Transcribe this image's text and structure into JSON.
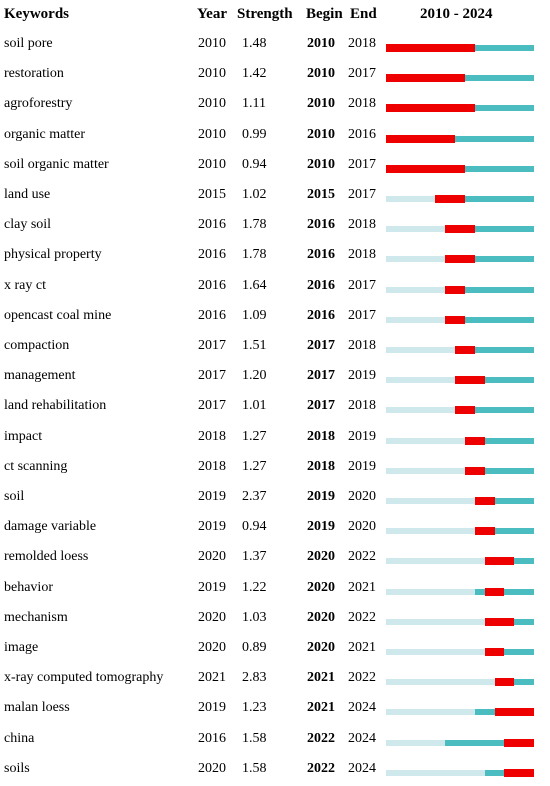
{
  "headers": {
    "keywords": "Keywords",
    "year": "Year",
    "strength": "Strength",
    "begin": "Begin",
    "end": "End",
    "range": "2010 - 2024"
  },
  "colors": {
    "burst": "#ee0000",
    "active": "#4bbcc0",
    "inactive": "#cfe8ec"
  },
  "chart_data": {
    "type": "table",
    "range_start": 2010,
    "range_end": 2024,
    "columns": [
      "Keywords",
      "Year",
      "Strength",
      "Begin",
      "End",
      "2010 - 2024"
    ],
    "rows": [
      {
        "keyword": "soil pore",
        "year": "2010",
        "strength": "1.48",
        "begin": "2010",
        "end": "2018"
      },
      {
        "keyword": "restoration",
        "year": "2010",
        "strength": "1.42",
        "begin": "2010",
        "end": "2017"
      },
      {
        "keyword": "agroforestry",
        "year": "2010",
        "strength": "1.11",
        "begin": "2010",
        "end": "2018"
      },
      {
        "keyword": "organic matter",
        "year": "2010",
        "strength": "0.99",
        "begin": "2010",
        "end": "2016"
      },
      {
        "keyword": "soil organic matter",
        "year": "2010",
        "strength": "0.94",
        "begin": "2010",
        "end": "2017"
      },
      {
        "keyword": "land use",
        "year": "2015",
        "strength": "1.02",
        "begin": "2015",
        "end": "2017"
      },
      {
        "keyword": "clay soil",
        "year": "2016",
        "strength": "1.78",
        "begin": "2016",
        "end": "2018"
      },
      {
        "keyword": "physical property",
        "year": "2016",
        "strength": "1.78",
        "begin": "2016",
        "end": "2018"
      },
      {
        "keyword": "x ray ct",
        "year": "2016",
        "strength": "1.64",
        "begin": "2016",
        "end": "2017"
      },
      {
        "keyword": "opencast coal mine",
        "year": "2016",
        "strength": "1.09",
        "begin": "2016",
        "end": "2017"
      },
      {
        "keyword": "compaction",
        "year": "2017",
        "strength": "1.51",
        "begin": "2017",
        "end": "2018"
      },
      {
        "keyword": "management",
        "year": "2017",
        "strength": "1.20",
        "begin": "2017",
        "end": "2019"
      },
      {
        "keyword": "land rehabilitation",
        "year": "2017",
        "strength": "1.01",
        "begin": "2017",
        "end": "2018"
      },
      {
        "keyword": "impact",
        "year": "2018",
        "strength": "1.27",
        "begin": "2018",
        "end": "2019"
      },
      {
        "keyword": "ct scanning",
        "year": "2018",
        "strength": "1.27",
        "begin": "2018",
        "end": "2019"
      },
      {
        "keyword": "soil",
        "year": "2019",
        "strength": "2.37",
        "begin": "2019",
        "end": "2020"
      },
      {
        "keyword": "damage variable",
        "year": "2019",
        "strength": "0.94",
        "begin": "2019",
        "end": "2020"
      },
      {
        "keyword": "remolded loess",
        "year": "2020",
        "strength": "1.37",
        "begin": "2020",
        "end": "2022"
      },
      {
        "keyword": "behavior",
        "year": "2019",
        "strength": "1.22",
        "begin": "2020",
        "end": "2021"
      },
      {
        "keyword": "mechanism",
        "year": "2020",
        "strength": "1.03",
        "begin": "2020",
        "end": "2022"
      },
      {
        "keyword": "image",
        "year": "2020",
        "strength": "0.89",
        "begin": "2020",
        "end": "2021"
      },
      {
        "keyword": "x-ray computed tomography",
        "year": "2021",
        "strength": "2.83",
        "begin": "2021",
        "end": "2022"
      },
      {
        "keyword": "malan loess",
        "year": "2019",
        "strength": "1.23",
        "begin": "2021",
        "end": "2024"
      },
      {
        "keyword": "china",
        "year": "2016",
        "strength": "1.58",
        "begin": "2022",
        "end": "2024"
      },
      {
        "keyword": "soils",
        "year": "2020",
        "strength": "1.58",
        "begin": "2022",
        "end": "2024"
      }
    ]
  }
}
